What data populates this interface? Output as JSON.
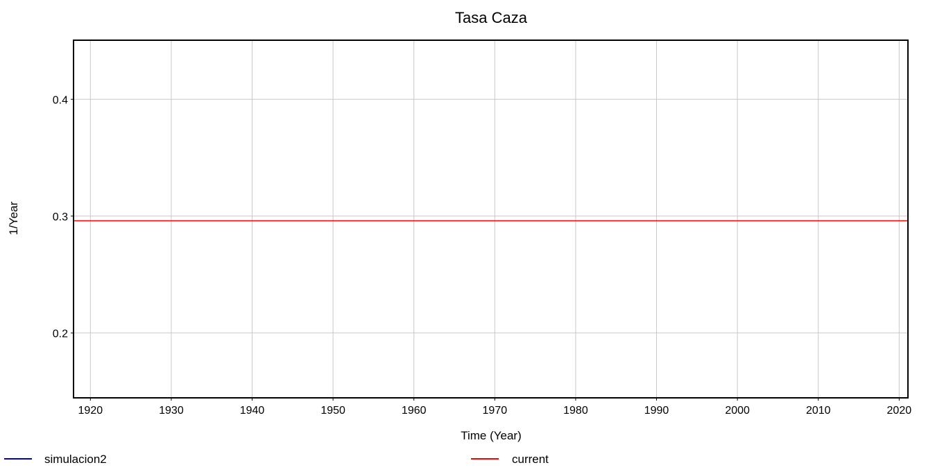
{
  "chart_data": {
    "type": "line",
    "title": "Tasa Caza",
    "xlabel": "Time (Year)",
    "ylabel": "1/Year",
    "xlim": [
      1918,
      2021
    ],
    "ylim": [
      0.145,
      0.45
    ],
    "x_ticks": [
      "1920",
      "1930",
      "1940",
      "1950",
      "1960",
      "1970",
      "1980",
      "1990",
      "2000",
      "2010",
      "2020"
    ],
    "y_ticks": [
      "0.2",
      "0.3",
      "0.4"
    ],
    "grid": true,
    "legend_position": "bottom",
    "series": [
      {
        "name": "simulacion2",
        "color": "#0000cc",
        "x": [
          1918,
          2021
        ],
        "y": [
          0.296,
          0.296
        ]
      },
      {
        "name": "current",
        "color": "#ff0000",
        "x": [
          1918,
          2021
        ],
        "y": [
          0.296,
          0.296
        ]
      }
    ]
  }
}
